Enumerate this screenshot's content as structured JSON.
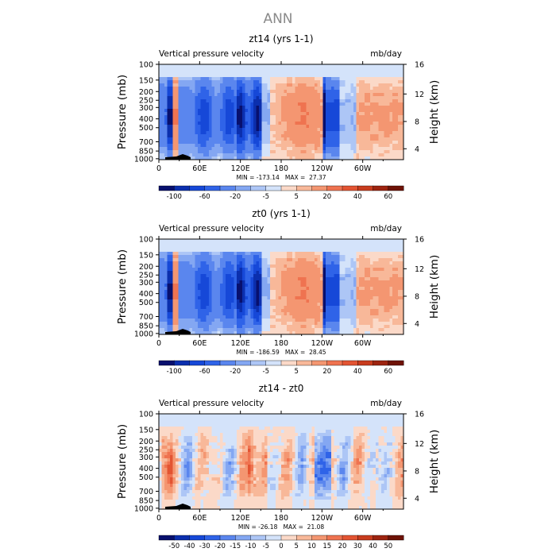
{
  "figure_title": "ANN",
  "chart_data": [
    {
      "type": "heatmap",
      "title": "zt14 (yrs 1-1)",
      "subtitle_left": "Vertical pressure velocity",
      "subtitle_right": "mb/day",
      "ylabel": "Pressure (mb)",
      "ylabel_right": "Height (km)",
      "x_ticks": [
        "0",
        "60E",
        "120E",
        "180",
        "120W",
        "60W"
      ],
      "y_ticks": [
        "100",
        "150",
        "200",
        "250",
        "300",
        "400",
        "500",
        "700",
        "850",
        "1000"
      ],
      "y_right_ticks": [
        "16",
        "12",
        "8",
        "4"
      ],
      "stats_text": "MIN = -173.14   MAX =  27.37",
      "colorbar_labels": [
        "-100",
        "-60",
        "-20",
        "-5",
        "5",
        "20",
        "40",
        "60"
      ],
      "colors": [
        "#08106e",
        "#0b2fae",
        "#1648d8",
        "#2f63e8",
        "#5a86ee",
        "#84a7f2",
        "#adc6f6",
        "#d4e3fa",
        "#fbd9c8",
        "#f8b899",
        "#f49671",
        "#ef7350",
        "#e35432",
        "#c83c1e",
        "#9d2410",
        "#6e1206"
      ],
      "min": -173.14,
      "max": 27.37
    },
    {
      "type": "heatmap",
      "title": "zt0 (yrs 1-1)",
      "subtitle_left": "Vertical pressure velocity",
      "subtitle_right": "mb/day",
      "ylabel": "Pressure (mb)",
      "ylabel_right": "Height (km)",
      "x_ticks": [
        "0",
        "60E",
        "120E",
        "180",
        "120W",
        "60W"
      ],
      "y_ticks": [
        "100",
        "150",
        "200",
        "250",
        "300",
        "400",
        "500",
        "700",
        "850",
        "1000"
      ],
      "y_right_ticks": [
        "16",
        "12",
        "8",
        "4"
      ],
      "stats_text": "MIN = -186.59   MAX =  28.45",
      "colorbar_labels": [
        "-100",
        "-60",
        "-20",
        "-5",
        "5",
        "20",
        "40",
        "60"
      ],
      "colors": [
        "#08106e",
        "#0b2fae",
        "#1648d8",
        "#2f63e8",
        "#5a86ee",
        "#84a7f2",
        "#adc6f6",
        "#d4e3fa",
        "#fbd9c8",
        "#f8b899",
        "#f49671",
        "#ef7350",
        "#e35432",
        "#c83c1e",
        "#9d2410",
        "#6e1206"
      ],
      "min": -186.59,
      "max": 28.45
    },
    {
      "type": "heatmap",
      "title": "zt14 - zt0",
      "subtitle_left": "Vertical pressure velocity",
      "subtitle_right": "mb/day",
      "ylabel": "Pressure (mb)",
      "ylabel_right": "Height (km)",
      "x_ticks": [
        "0",
        "60E",
        "120E",
        "180",
        "120W",
        "60W"
      ],
      "y_ticks": [
        "100",
        "150",
        "200",
        "250",
        "300",
        "400",
        "500",
        "700",
        "850",
        "1000"
      ],
      "y_right_ticks": [
        "16",
        "12",
        "8",
        "4"
      ],
      "stats_text": "MIN = -26.18   MAX =  21.08",
      "colorbar_labels": [
        "-50",
        "-40",
        "-30",
        "-20",
        "-15",
        "-10",
        "-5",
        "0",
        "5",
        "10",
        "15",
        "20",
        "30",
        "40",
        "50"
      ],
      "colors": [
        "#08106e",
        "#0b2fae",
        "#1648d8",
        "#2f63e8",
        "#5a86ee",
        "#84a7f2",
        "#adc6f6",
        "#d4e3fa",
        "#fbd9c8",
        "#f8b899",
        "#f49671",
        "#ef7350",
        "#e35432",
        "#c83c1e",
        "#9d2410",
        "#6e1206"
      ],
      "min": -26.18,
      "max": 21.08
    }
  ]
}
